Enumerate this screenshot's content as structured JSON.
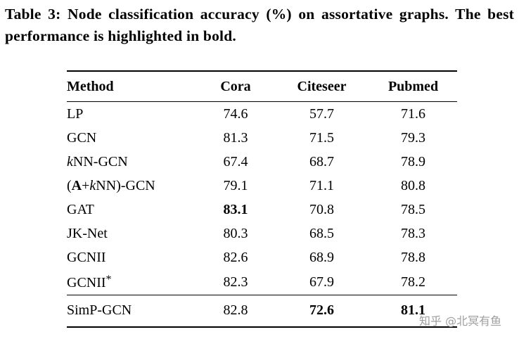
{
  "caption": {
    "text": "Table 3: Node classification accuracy (%) on assortative graphs. The best performance is highlighted in bold."
  },
  "table": {
    "columns": [
      "Method",
      "Cora",
      "Citeseer",
      "Pubmed"
    ],
    "rows": [
      {
        "method": "LP",
        "values": [
          "74.6",
          "57.7",
          "71.6"
        ],
        "bold": [
          false,
          false,
          false
        ]
      },
      {
        "method": "GCN",
        "values": [
          "81.3",
          "71.5",
          "79.3"
        ],
        "bold": [
          false,
          false,
          false
        ]
      },
      {
        "method": "kNN-GCN",
        "method_segments": [
          {
            "t": "k",
            "s": "i"
          },
          {
            "t": "NN-GCN"
          }
        ],
        "values": [
          "67.4",
          "68.7",
          "78.9"
        ],
        "bold": [
          false,
          false,
          false
        ]
      },
      {
        "method": "(A+kNN)-GCN",
        "method_segments": [
          {
            "t": "("
          },
          {
            "t": "A",
            "s": "b"
          },
          {
            "t": "+"
          },
          {
            "t": "k",
            "s": "i"
          },
          {
            "t": "NN)-GCN"
          }
        ],
        "values": [
          "79.1",
          "71.1",
          "80.8"
        ],
        "bold": [
          false,
          false,
          false
        ]
      },
      {
        "method": "GAT",
        "values": [
          "83.1",
          "70.8",
          "78.5"
        ],
        "bold": [
          true,
          false,
          false
        ]
      },
      {
        "method": "JK-Net",
        "values": [
          "80.3",
          "68.5",
          "78.3"
        ],
        "bold": [
          false,
          false,
          false
        ]
      },
      {
        "method": "GCNII",
        "values": [
          "82.6",
          "68.9",
          "78.8"
        ],
        "bold": [
          false,
          false,
          false
        ]
      },
      {
        "method": "GCNII*",
        "method_segments": [
          {
            "t": "GCNII"
          },
          {
            "t": "*",
            "s": "sup"
          }
        ],
        "values": [
          "82.3",
          "67.9",
          "78.2"
        ],
        "bold": [
          false,
          false,
          false
        ]
      }
    ],
    "footer_rows": [
      {
        "method": "SimP-GCN",
        "values": [
          "82.8",
          "72.6",
          "81.1"
        ],
        "bold": [
          false,
          true,
          true
        ]
      }
    ]
  },
  "watermark": {
    "text": "知乎 @北冥有鱼"
  },
  "colors": {
    "text": "#000000",
    "background": "#ffffff",
    "watermark": "#9f9f9f",
    "rule": "#000000"
  }
}
